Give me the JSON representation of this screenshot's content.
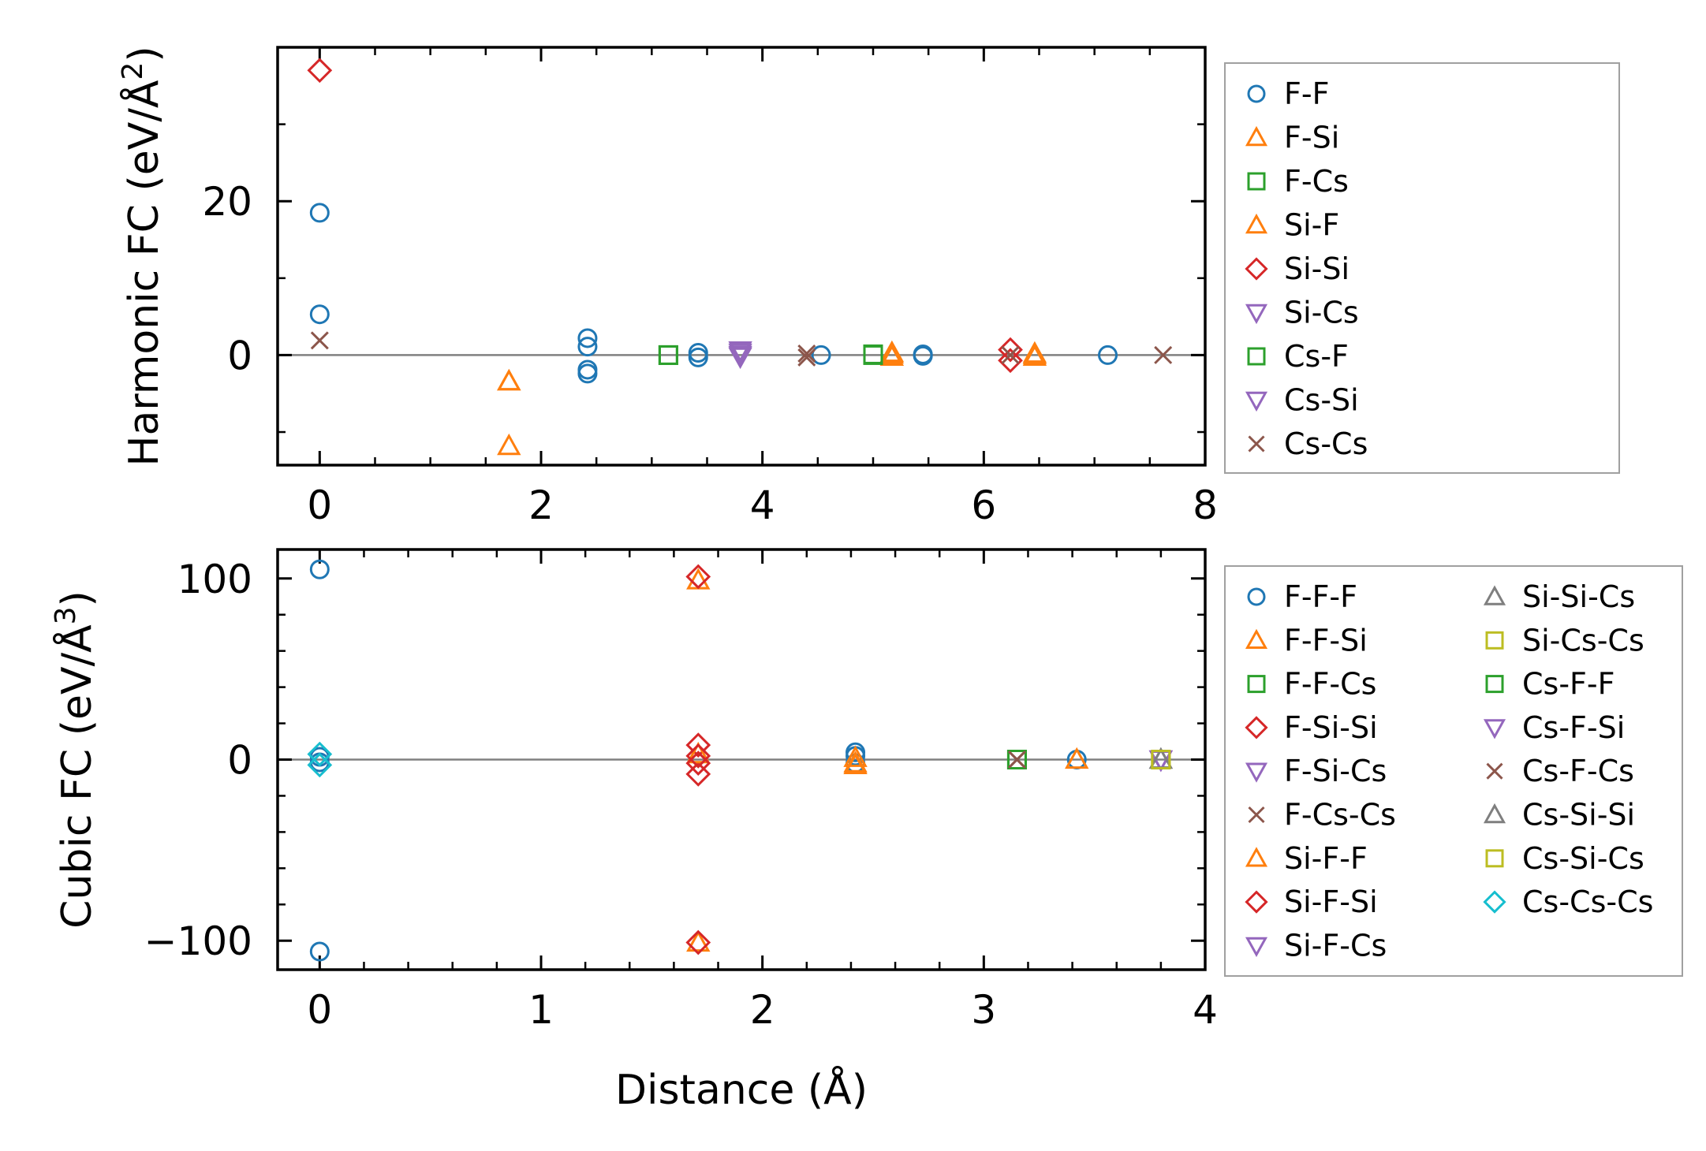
{
  "chart_data": [
    {
      "type": "scatter",
      "ylabel_main": "Harmonic FC (eV/Å",
      "ylabel_sup": "2",
      "ylabel_end": ")",
      "xlabel": "",
      "xlim": [
        -0.38,
        8.0
      ],
      "ylim": [
        -14.3,
        40.0
      ],
      "xticks": [
        0,
        2,
        4,
        6,
        8
      ],
      "xtick_labels": [
        "0",
        "2",
        "4",
        "6",
        "8"
      ],
      "yticks": [
        0,
        20
      ],
      "ytick_labels": [
        "0",
        "20"
      ],
      "legend_position": "right",
      "series": [
        {
          "name": "F-F",
          "marker": "circle",
          "color": "#1f77b4",
          "points": [
            [
              0,
              18.5
            ],
            [
              0,
              5.3
            ],
            [
              2.42,
              2.2
            ],
            [
              2.42,
              1.1
            ],
            [
              2.42,
              -1.9
            ],
            [
              2.42,
              -2.4
            ],
            [
              3.42,
              0.3
            ],
            [
              3.42,
              -0.3
            ],
            [
              4.53,
              0.0
            ],
            [
              5.45,
              0.1
            ],
            [
              5.45,
              -0.1
            ],
            [
              7.12,
              0.0
            ]
          ]
        },
        {
          "name": "F-Si",
          "marker": "triangle-up",
          "color": "#ff7f0e",
          "points": [
            [
              1.71,
              -3.4
            ],
            [
              1.71,
              -11.8
            ],
            [
              5.17,
              0.3
            ],
            [
              5.17,
              -0.2
            ],
            [
              6.46,
              0.2
            ],
            [
              6.46,
              -0.2
            ]
          ]
        },
        {
          "name": "F-Cs",
          "marker": "square",
          "color": "#2ca02c",
          "points": [
            [
              3.15,
              0.0
            ],
            [
              5.0,
              0.1
            ]
          ]
        },
        {
          "name": "Si-F",
          "marker": "triangle-up",
          "color": "#ff7f0e",
          "points": [
            [
              1.71,
              -3.4
            ],
            [
              5.17,
              0.1
            ],
            [
              6.46,
              0.0
            ]
          ]
        },
        {
          "name": "Si-Si",
          "marker": "diamond",
          "color": "#d62728",
          "points": [
            [
              0,
              37.0
            ],
            [
              6.24,
              0.7
            ],
            [
              6.24,
              -0.7
            ]
          ]
        },
        {
          "name": "Si-Cs",
          "marker": "triangle-down",
          "color": "#9467bd",
          "points": [
            [
              3.8,
              0.6
            ],
            [
              3.8,
              -0.2
            ]
          ]
        },
        {
          "name": "Cs-F",
          "marker": "square",
          "color": "#2ca02c",
          "points": [
            [
              3.15,
              0.0
            ],
            [
              5.0,
              0.0
            ]
          ]
        },
        {
          "name": "Cs-Si",
          "marker": "triangle-down",
          "color": "#9467bd",
          "points": [
            [
              3.8,
              0.3
            ],
            [
              3.8,
              0.0
            ]
          ]
        },
        {
          "name": "Cs-Cs",
          "marker": "x",
          "color": "#8c564b",
          "points": [
            [
              0,
              1.9
            ],
            [
              4.4,
              0.2
            ],
            [
              4.4,
              -0.3
            ],
            [
              6.24,
              0.0
            ],
            [
              7.62,
              0.0
            ]
          ]
        }
      ]
    },
    {
      "type": "scatter",
      "ylabel_main": "Cubic FC (eV/Å",
      "ylabel_sup": "3",
      "ylabel_end": ")",
      "xlabel": "Distance (Å)",
      "xlim": [
        -0.19,
        4.0
      ],
      "ylim": [
        -116.0,
        116.0
      ],
      "xticks": [
        0,
        1,
        2,
        3,
        4
      ],
      "xtick_labels": [
        "0",
        "1",
        "2",
        "3",
        "4"
      ],
      "yticks": [
        -100,
        0,
        100
      ],
      "ytick_labels": [
        "−100",
        "0",
        "100"
      ],
      "legend_position": "right",
      "series": [
        {
          "name": "F-F-F",
          "marker": "circle",
          "color": "#1f77b4",
          "points": [
            [
              0,
              105
            ],
            [
              0,
              -106
            ],
            [
              0,
              1.5
            ],
            [
              0,
              -1.5
            ],
            [
              2.42,
              4
            ],
            [
              2.42,
              2
            ],
            [
              2.42,
              -2
            ],
            [
              3.42,
              0
            ]
          ]
        },
        {
          "name": "F-F-Si",
          "marker": "triangle-up",
          "color": "#ff7f0e",
          "points": [
            [
              1.71,
              99
            ],
            [
              1.71,
              -101
            ],
            [
              2.42,
              1
            ],
            [
              2.42,
              -3
            ],
            [
              3.42,
              0
            ]
          ]
        },
        {
          "name": "F-F-Cs",
          "marker": "square",
          "color": "#2ca02c",
          "points": [
            [
              3.15,
              0
            ]
          ]
        },
        {
          "name": "F-Si-Si",
          "marker": "diamond",
          "color": "#d62728",
          "points": [
            [
              1.71,
              101
            ],
            [
              1.71,
              -101
            ],
            [
              1.71,
              8
            ],
            [
              1.71,
              -8
            ]
          ]
        },
        {
          "name": "F-Si-Cs",
          "marker": "triangle-down",
          "color": "#9467bd",
          "points": [
            [
              3.8,
              0
            ]
          ]
        },
        {
          "name": "F-Cs-Cs",
          "marker": "x",
          "color": "#8c564b",
          "points": [
            [
              3.15,
              0
            ]
          ]
        },
        {
          "name": "Si-F-F",
          "marker": "triangle-up",
          "color": "#ff7f0e",
          "points": [
            [
              1.71,
              3
            ],
            [
              2.42,
              -2
            ]
          ]
        },
        {
          "name": "Si-F-Si",
          "marker": "diamond",
          "color": "#d62728",
          "points": [
            [
              1.71,
              2
            ],
            [
              1.71,
              -2
            ]
          ]
        },
        {
          "name": "Si-F-Cs",
          "marker": "triangle-down",
          "color": "#9467bd",
          "points": [
            [
              3.8,
              0
            ]
          ]
        },
        {
          "name": "Si-Si-Cs",
          "marker": "triangle-up",
          "color": "#7f7f7f",
          "points": [
            [
              3.8,
              0
            ]
          ]
        },
        {
          "name": "Si-Cs-Cs",
          "marker": "square",
          "color": "#bcbd22",
          "points": [
            [
              3.8,
              0
            ]
          ]
        },
        {
          "name": "Cs-F-F",
          "marker": "square",
          "color": "#2ca02c",
          "points": [
            [
              3.15,
              0
            ]
          ]
        },
        {
          "name": "Cs-F-Si",
          "marker": "triangle-down",
          "color": "#9467bd",
          "points": [
            [
              3.8,
              0
            ]
          ]
        },
        {
          "name": "Cs-F-Cs",
          "marker": "x",
          "color": "#8c564b",
          "points": [
            [
              3.15,
              0
            ]
          ]
        },
        {
          "name": "Cs-Si-Si",
          "marker": "triangle-up",
          "color": "#7f7f7f",
          "points": [
            [
              3.8,
              0
            ]
          ]
        },
        {
          "name": "Cs-Si-Cs",
          "marker": "square",
          "color": "#bcbd22",
          "points": [
            [
              3.8,
              0
            ]
          ]
        },
        {
          "name": "Cs-Cs-Cs",
          "marker": "diamond",
          "color": "#17becf",
          "points": [
            [
              0,
              3
            ],
            [
              0,
              -3
            ]
          ]
        }
      ]
    }
  ]
}
